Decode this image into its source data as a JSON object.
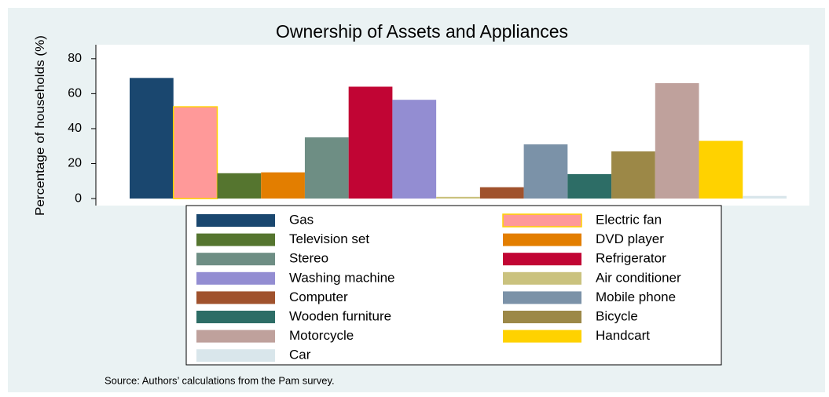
{
  "chart_data": {
    "type": "bar",
    "title": "Ownership of Assets and Appliances",
    "y_label": "Percentage of households (%)",
    "note": "Source: Authors’ calculations from the Pam survey.",
    "ylim": [
      -4,
      88
    ],
    "yticks": [
      0,
      20,
      40,
      60,
      80
    ],
    "grid": false,
    "series": [
      {
        "name": "Gas",
        "color": "#1a476f",
        "values": [
          69
        ]
      },
      {
        "name": "Electric fan",
        "color": "#ff9999",
        "outline": "#ffd200",
        "values": [
          52.5
        ]
      },
      {
        "name": "Television set",
        "color": "#55752f",
        "values": [
          14.5
        ]
      },
      {
        "name": "DVD player",
        "color": "#e37e00",
        "values": [
          15
        ]
      },
      {
        "name": "Stereo",
        "color": "#6e8e84",
        "values": [
          35
        ]
      },
      {
        "name": "Refrigerator",
        "color": "#c10534",
        "values": [
          64
        ]
      },
      {
        "name": "Washing machine",
        "color": "#938dd2",
        "values": [
          56.5
        ]
      },
      {
        "name": "Air conditioner",
        "color": "#cac27e",
        "values": [
          1
        ]
      },
      {
        "name": "Computer",
        "color": "#a0522d",
        "values": [
          6.5
        ]
      },
      {
        "name": "Mobile phone",
        "color": "#7b92a8",
        "values": [
          31
        ]
      },
      {
        "name": "Wooden furniture",
        "color": "#2d6d66",
        "values": [
          14
        ]
      },
      {
        "name": "Bicycle",
        "color": "#9c8847",
        "values": [
          27
        ]
      },
      {
        "name": "Motorcycle",
        "color": "#bfa19c",
        "values": [
          66
        ]
      },
      {
        "name": "Handcart",
        "color": "#ffd200",
        "values": [
          33
        ]
      },
      {
        "name": "Car",
        "color": "#d9e6eb",
        "values": [
          1.5
        ]
      }
    ]
  }
}
